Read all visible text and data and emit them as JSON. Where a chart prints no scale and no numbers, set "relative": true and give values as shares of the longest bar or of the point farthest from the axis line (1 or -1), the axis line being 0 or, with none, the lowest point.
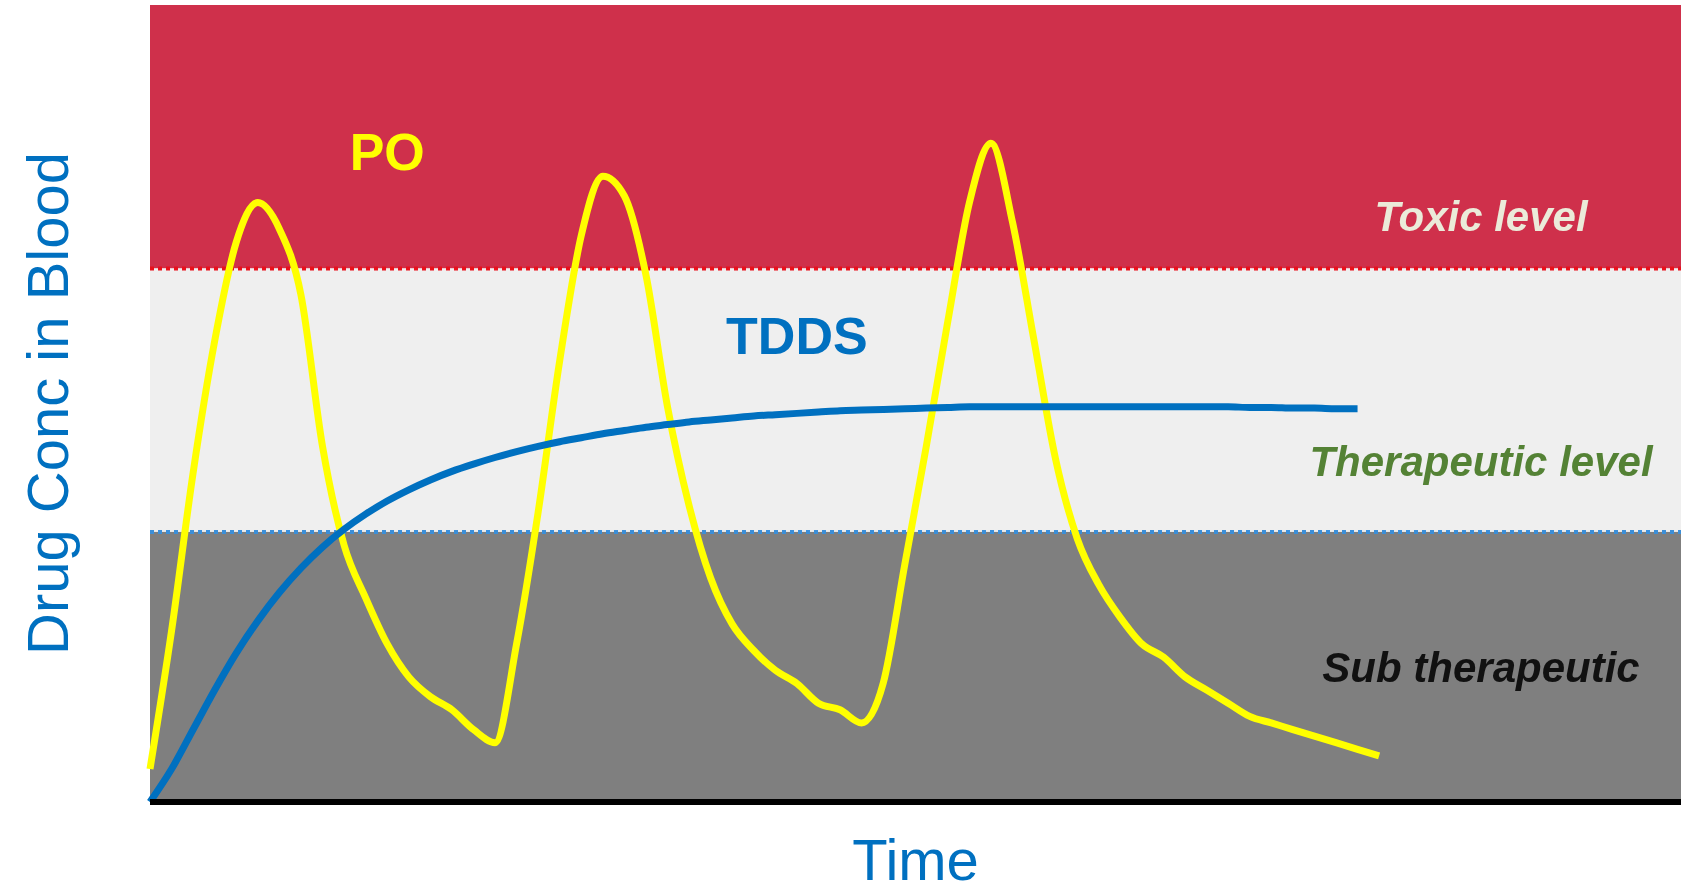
{
  "chart_data": {
    "type": "line",
    "relative": true,
    "xlabel": "Time",
    "ylabel": "Drug Conc in Blood",
    "categories": [
      null,
      null,
      null,
      null,
      null,
      null,
      null,
      null,
      null,
      null,
      null,
      null,
      null,
      null,
      null,
      null,
      null,
      null,
      null,
      null,
      null,
      null,
      null,
      null,
      null,
      null,
      null,
      null,
      null,
      null,
      null,
      null,
      null,
      null,
      null,
      null,
      null,
      null,
      null,
      null,
      null,
      null,
      null,
      null,
      null,
      null,
      null,
      null,
      null,
      null,
      null,
      null,
      null,
      null,
      null,
      null,
      null,
      null,
      null,
      null,
      null,
      null,
      null,
      null,
      null,
      null,
      null,
      null,
      null,
      null,
      null,
      null
    ],
    "series": [
      {
        "name": "PO",
        "color": "#ffff00",
        "values": [
          0.05,
          0.26,
          0.5,
          0.7,
          0.85,
          0.91,
          0.87,
          0.77,
          0.54,
          0.39,
          0.31,
          0.24,
          0.19,
          0.16,
          0.14,
          0.11,
          0.09,
          0.24,
          0.44,
          0.67,
          0.86,
          0.95,
          0.92,
          0.8,
          0.6,
          0.45,
          0.34,
          0.27,
          0.23,
          0.2,
          0.18,
          0.15,
          0.14,
          0.12,
          0.18,
          0.36,
          0.54,
          0.73,
          0.91,
          1.0,
          0.88,
          0.7,
          0.52,
          0.4,
          0.33,
          0.28,
          0.24,
          0.22,
          0.19,
          0.17,
          0.15,
          0.13,
          0.12,
          0.11,
          0.1,
          0.09,
          0.08,
          0.07,
          null,
          null,
          null,
          null,
          null,
          null,
          null,
          null,
          null,
          null,
          null,
          null,
          null,
          null
        ]
      },
      {
        "name": "TDDS",
        "color": "#0070c0",
        "values": [
          0,
          0.05,
          0.11,
          0.17,
          0.226,
          0.275,
          0.318,
          0.355,
          0.387,
          0.414,
          0.437,
          0.457,
          0.474,
          0.489,
          0.502,
          0.513,
          0.523,
          0.532,
          0.54,
          0.547,
          0.553,
          0.559,
          0.564,
          0.569,
          0.573,
          0.577,
          0.58,
          0.583,
          0.586,
          0.588,
          0.59,
          0.592,
          0.594,
          0.595,
          0.596,
          0.597,
          0.598,
          0.599,
          0.6,
          0.6,
          0.6,
          0.6,
          0.6,
          0.6,
          0.6,
          0.6,
          0.6,
          0.6,
          0.6,
          0.6,
          0.6,
          0.599,
          0.599,
          0.598,
          0.598,
          0.597,
          0.597,
          null,
          null,
          null,
          null,
          null,
          null,
          null,
          null,
          null,
          null,
          null,
          null,
          null,
          null,
          null
        ]
      }
    ],
    "bands": [
      {
        "axis": "y",
        "from": 0.81,
        "to": 1.21,
        "label": "Toxic level",
        "color": "#cf304b"
      },
      {
        "axis": "y",
        "from": 0.41,
        "to": 0.81,
        "label": "Therapeutic level",
        "color": "#efefef"
      },
      {
        "axis": "y",
        "from": 0,
        "to": 0.41,
        "label": "Sub therapeutic",
        "color": "#7f7f7f"
      }
    ],
    "ref_lines": [
      {
        "axis": "y",
        "value": 0.81,
        "color": "#e8101c",
        "line_style": "dotted"
      },
      {
        "axis": "y",
        "value": 0.41,
        "color": "#3c8fd8",
        "line_style": "dotted"
      }
    ]
  }
}
